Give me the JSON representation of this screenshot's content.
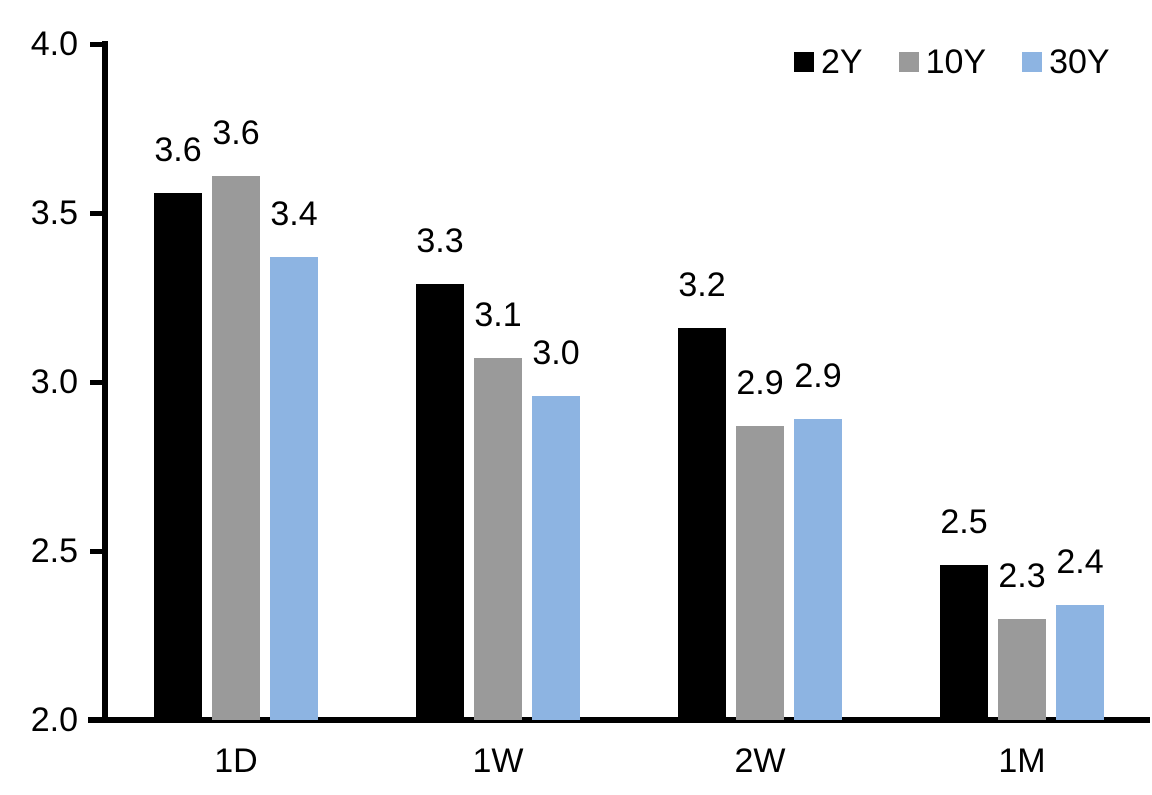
{
  "chart_data": {
    "type": "bar",
    "title": "",
    "xlabel": "",
    "ylabel": "",
    "categories": [
      "1D",
      "1W",
      "2W",
      "1M"
    ],
    "series": [
      {
        "name": "2Y",
        "color": "#000000",
        "values": [
          3.6,
          3.3,
          3.2,
          2.5
        ],
        "labels": [
          "3.6",
          "3.3",
          "3.2",
          "2.5"
        ],
        "precise_values": [
          3.56,
          3.29,
          3.16,
          2.46
        ]
      },
      {
        "name": "10Y",
        "color": "#9A9A9A",
        "values": [
          3.6,
          3.1,
          2.9,
          2.3
        ],
        "labels": [
          "3.6",
          "3.1",
          "2.9",
          "2.3"
        ],
        "precise_values": [
          3.61,
          3.07,
          2.87,
          2.3
        ]
      },
      {
        "name": "30Y",
        "color": "#8DB4E2",
        "values": [
          3.4,
          3.0,
          2.9,
          2.4
        ],
        "labels": [
          "3.4",
          "3.0",
          "2.9",
          "2.4"
        ],
        "precise_values": [
          3.37,
          2.96,
          2.89,
          2.34
        ]
      }
    ],
    "ylim": [
      2.0,
      4.0
    ],
    "yticks": [
      4.0,
      3.5,
      3.0,
      2.5,
      2.0
    ],
    "ytick_labels": [
      "4.0",
      "3.5",
      "3.0",
      "2.5",
      "2.0"
    ],
    "grid": false,
    "legend_position": "top-right",
    "data_labels_shown": true,
    "axis_color": "#000000",
    "text_color": "#000000",
    "background_color": "#FFFFFF"
  }
}
